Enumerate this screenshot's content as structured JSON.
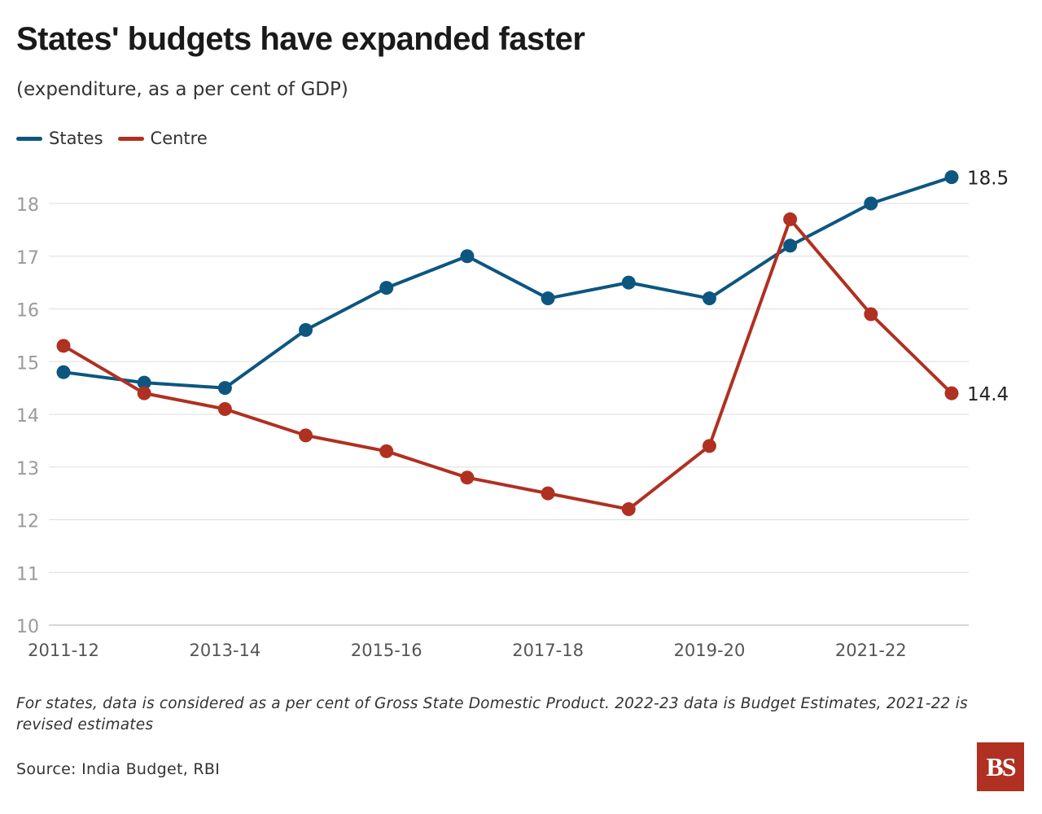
{
  "title": "States' budgets have expanded faster",
  "subtitle": "(expenditure, as a per cent of GDP)",
  "legend": [
    {
      "label": "States",
      "color": "#0d5680"
    },
    {
      "label": "Centre",
      "color": "#b03021"
    }
  ],
  "footnote": "For states, data is considered as a per cent of Gross State Domestic Product. 2022-23 data is Budget Estimates, 2021-22 is revised estimates",
  "source": "Source: India Budget, RBI",
  "logo": "BS",
  "chart_data": {
    "type": "line",
    "title": "States' budgets have expanded faster",
    "x": [
      "2011-12",
      "2012-13",
      "2013-14",
      "2014-15",
      "2015-16",
      "2016-17",
      "2017-18",
      "2018-19",
      "2019-20",
      "2020-21",
      "2021-22",
      "2022-23"
    ],
    "x_tick_labels": [
      "2011-12",
      "2013-14",
      "2015-16",
      "2017-18",
      "2019-20",
      "2021-22"
    ],
    "ylim": [
      10,
      18.5
    ],
    "yticks": [
      10,
      11,
      12,
      13,
      14,
      15,
      16,
      17,
      18
    ],
    "grid": true,
    "legend_position": "top-left",
    "series": [
      {
        "name": "States",
        "color": "#0d5680",
        "values": [
          14.8,
          14.6,
          14.5,
          15.6,
          16.4,
          17.0,
          16.2,
          16.5,
          16.2,
          17.2,
          18.0,
          18.5
        ],
        "end_label": "18.5"
      },
      {
        "name": "Centre",
        "color": "#b03021",
        "values": [
          15.3,
          14.4,
          14.1,
          13.6,
          13.3,
          12.8,
          12.5,
          12.2,
          13.4,
          17.7,
          15.9,
          14.4
        ],
        "end_label": "14.4"
      }
    ]
  }
}
